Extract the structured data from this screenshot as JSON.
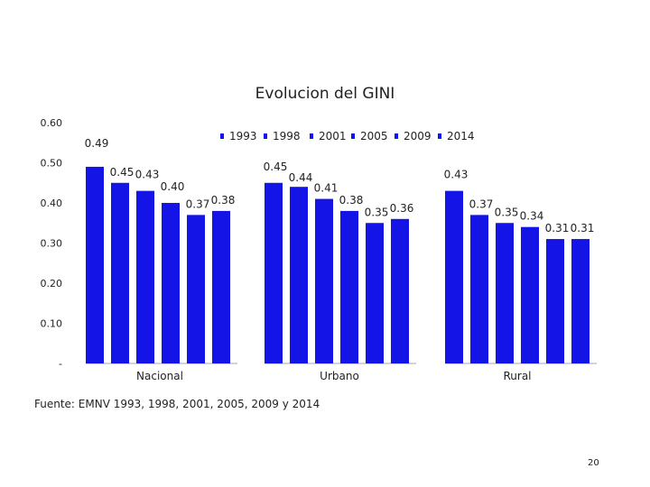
{
  "chart_data": {
    "type": "bar",
    "title": "Evolucion del GINI",
    "groups": [
      "Nacional",
      "Urbano",
      "Rural"
    ],
    "legend": [
      "1993",
      "1998",
      "2001",
      "2005",
      "2009",
      "2014"
    ],
    "series": [
      {
        "name": "1993",
        "values": [
          0.49,
          0.45,
          0.43
        ]
      },
      {
        "name": "1998",
        "values": [
          0.45,
          0.44,
          0.37
        ]
      },
      {
        "name": "2001",
        "values": [
          0.43,
          0.41,
          0.35
        ]
      },
      {
        "name": "2005",
        "values": [
          0.4,
          0.38,
          0.34
        ]
      },
      {
        "name": "2009",
        "values": [
          0.37,
          0.35,
          0.31
        ]
      },
      {
        "name": "2014",
        "values": [
          0.38,
          0.36,
          0.31
        ]
      }
    ],
    "y_ticks": [
      {
        "value": 0,
        "label": "-"
      },
      {
        "value": 0.1,
        "label": "0.10"
      },
      {
        "value": 0.2,
        "label": "0.20"
      },
      {
        "value": 0.3,
        "label": "0.30"
      },
      {
        "value": 0.4,
        "label": "0.40"
      },
      {
        "value": 0.5,
        "label": "0.50"
      },
      {
        "value": 0.6,
        "label": "0.60"
      }
    ],
    "ylim": [
      0,
      0.6
    ],
    "bar_color": "#1414e6",
    "legend_placement": "top",
    "grid": false
  },
  "source_note": "Fuente: EMNV 1993, 1998, 2001, 2005, 2009 y 2014",
  "page_number": "20"
}
